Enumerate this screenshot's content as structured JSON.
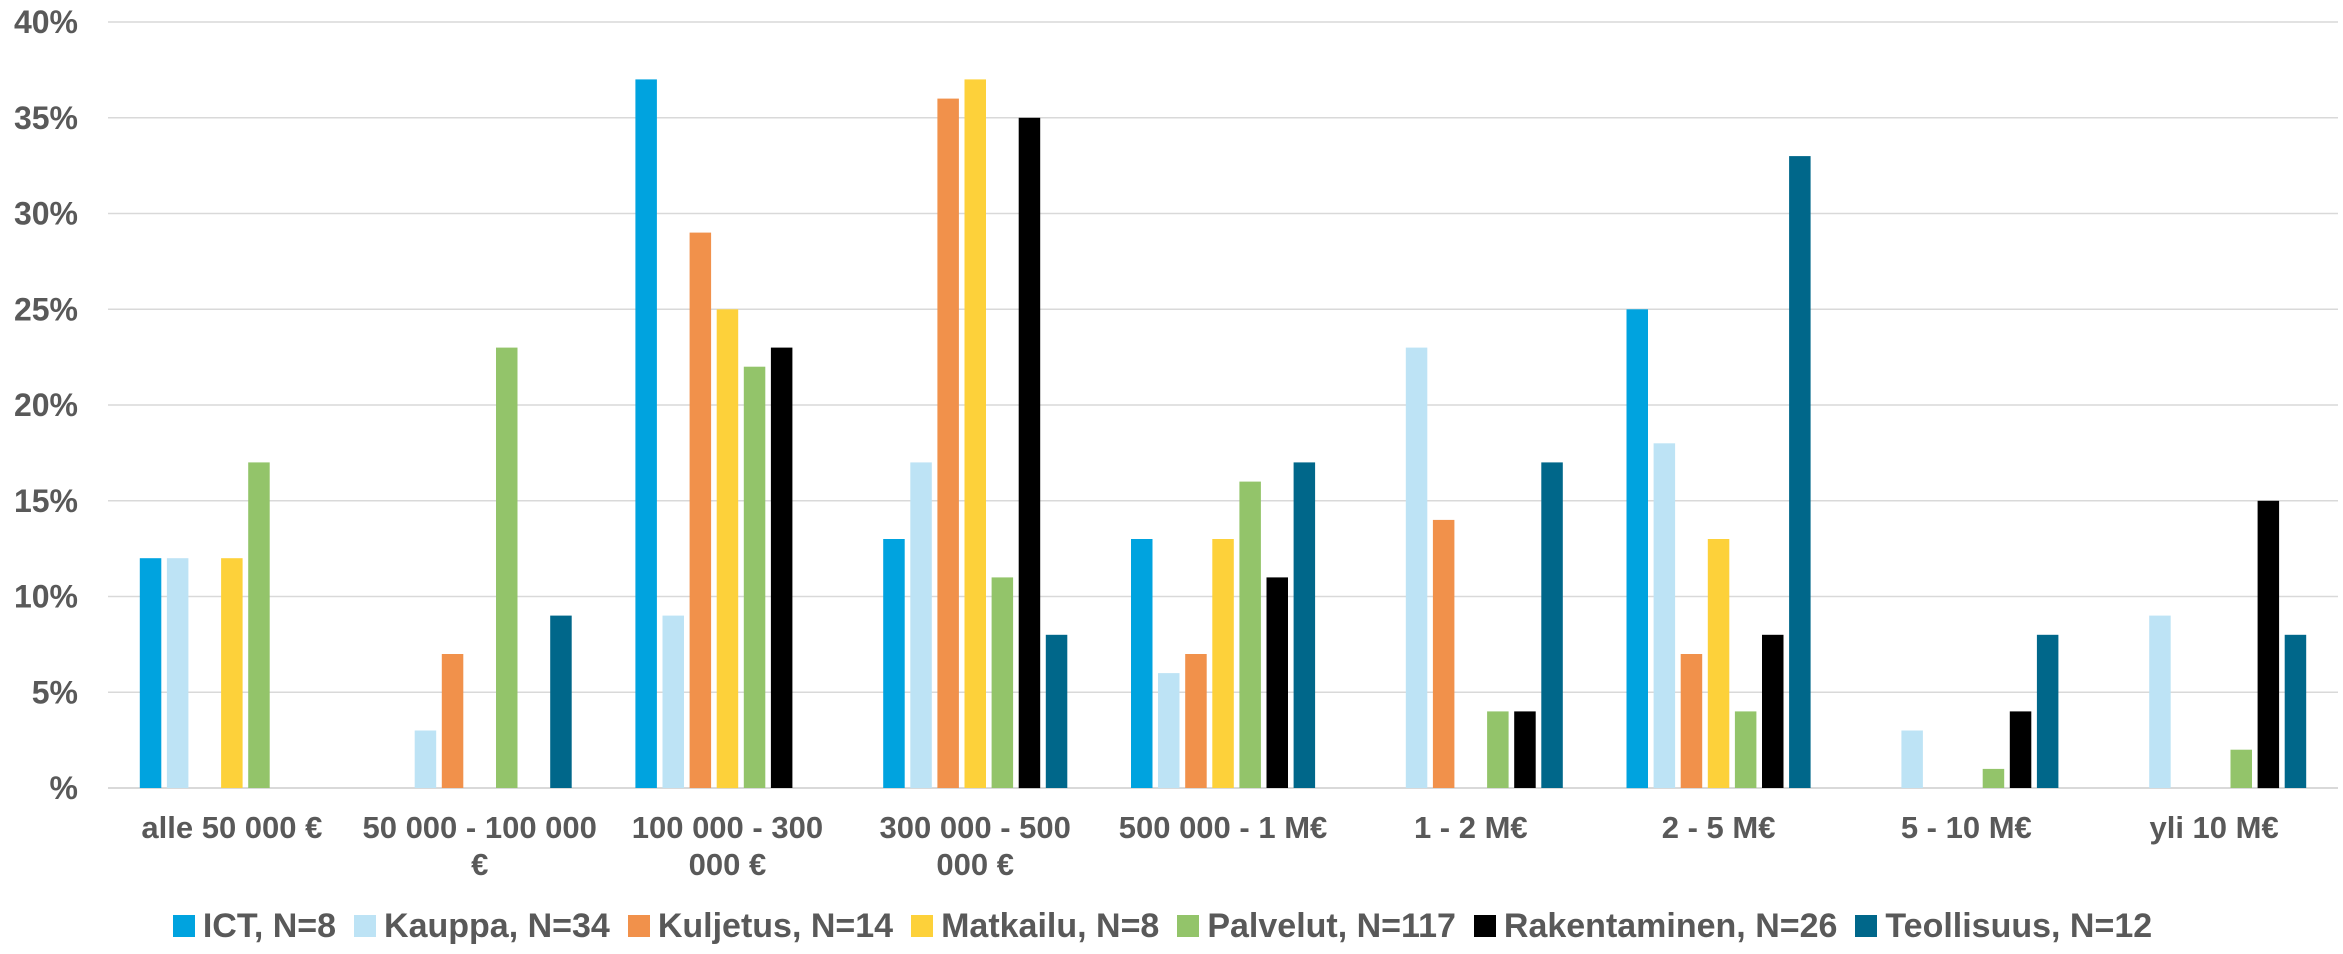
{
  "chart_data": {
    "type": "bar",
    "categories": [
      [
        "alle 50 000 €"
      ],
      [
        "50 000 - 100 000",
        "€"
      ],
      [
        "100 000 - 300",
        "000 €"
      ],
      [
        "300 000 - 500",
        "000 €"
      ],
      [
        "500 000 - 1 M€"
      ],
      [
        "1 - 2 M€"
      ],
      [
        "2 - 5 M€"
      ],
      [
        "5 - 10 M€"
      ],
      [
        "yli 10 M€"
      ]
    ],
    "series": [
      {
        "name": "ICT, N=8",
        "color": "#00A3DF",
        "values": [
          12,
          0,
          37,
          13,
          13,
          0,
          25,
          0,
          0
        ]
      },
      {
        "name": "Kauppa, N=34",
        "color": "#BDE3F5",
        "values": [
          12,
          3,
          9,
          17,
          6,
          23,
          18,
          3,
          9
        ]
      },
      {
        "name": "Kuljetus, N=14",
        "color": "#F1914B",
        "values": [
          0,
          7,
          29,
          36,
          7,
          14,
          7,
          0,
          0
        ]
      },
      {
        "name": "Matkailu, N=8",
        "color": "#FDD13A",
        "values": [
          12,
          0,
          25,
          37,
          13,
          0,
          13,
          0,
          0
        ]
      },
      {
        "name": "Palvelut, N=117",
        "color": "#93C46A",
        "values": [
          17,
          23,
          22,
          11,
          16,
          4,
          4,
          1,
          2
        ]
      },
      {
        "name": "Rakentaminen, N=26",
        "color": "#000000",
        "values": [
          0,
          0,
          23,
          35,
          11,
          4,
          8,
          4,
          15
        ]
      },
      {
        "name": "Teollisuus, N=12",
        "color": "#00678A",
        "values": [
          0,
          9,
          0,
          8,
          17,
          17,
          33,
          8,
          8
        ]
      }
    ],
    "yticks": [
      "%",
      "5%",
      "10%",
      "15%",
      "20%",
      "25%",
      "30%",
      "35%",
      "40%"
    ],
    "ylim": [
      0,
      40
    ],
    "grid": true,
    "legend_position": "bottom",
    "gridline_color": "#D9D9D9",
    "text_color": "#595959"
  }
}
